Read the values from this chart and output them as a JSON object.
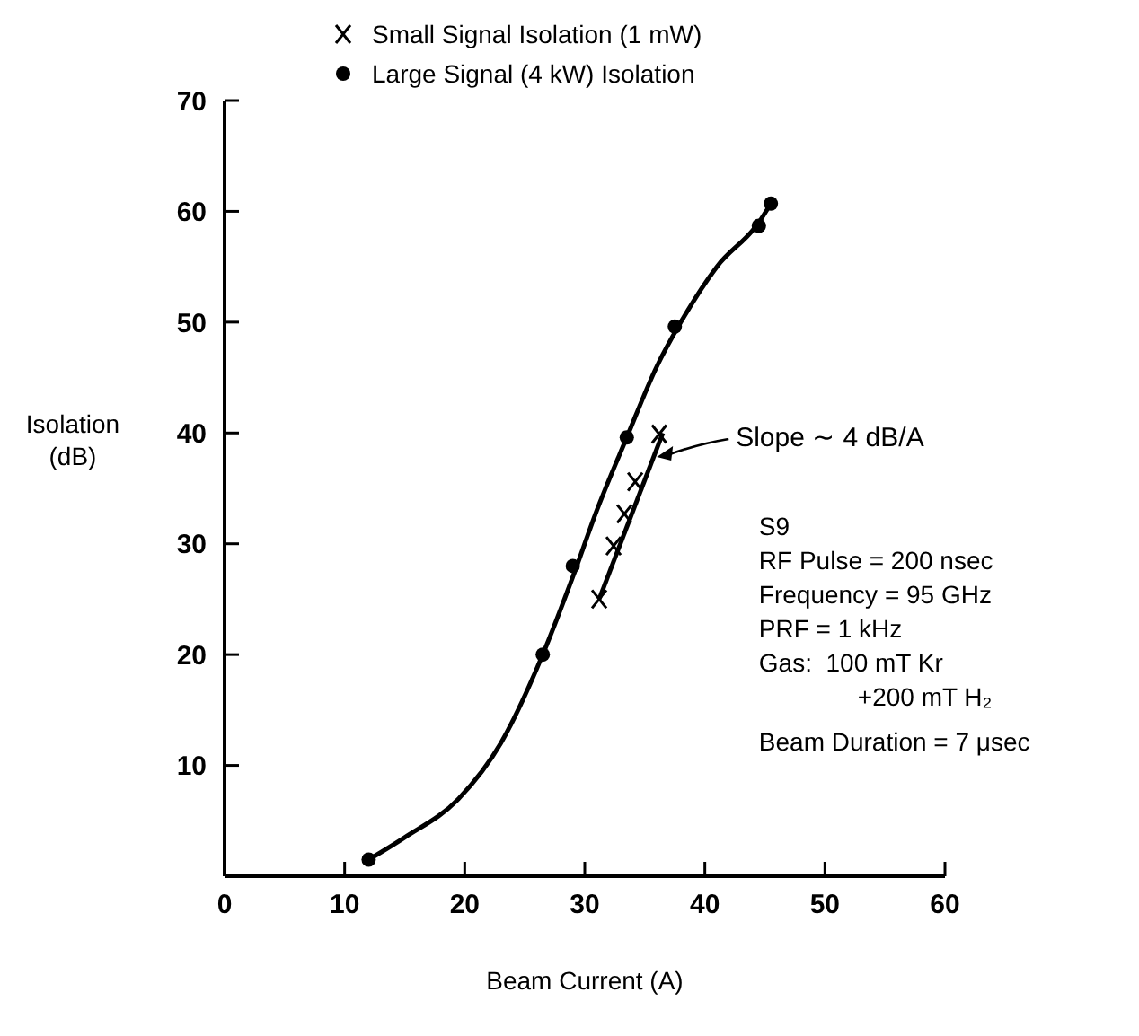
{
  "chart_data": {
    "type": "scatter",
    "xlabel": "Beam Current (A)",
    "ylabel": "Isolation\n(dB)",
    "xlim": [
      0,
      60
    ],
    "xticks": [
      0,
      10,
      20,
      30,
      40,
      50,
      60
    ],
    "ylim": [
      0,
      70
    ],
    "yticks": [
      10,
      20,
      30,
      40,
      50,
      60,
      70
    ],
    "grid": false,
    "legend": "top",
    "series": [
      {
        "name": "Small Signal Isolation (1 mW)",
        "type": "scatter",
        "marker": "cross",
        "color": "#000000",
        "x": [
          31.2,
          32.4,
          33.3,
          34.2,
          36.2
        ],
        "values": [
          25,
          29.8,
          32.7,
          35.6,
          39.9
        ]
      },
      {
        "name": "Large Signal (4 kW) Isolation",
        "type": "scatter",
        "marker": "circle",
        "color": "#000000",
        "x": [
          12,
          26.5,
          29,
          33.5,
          37.5,
          44.5,
          45.5
        ],
        "values": [
          1.5,
          20,
          28,
          39.6,
          49.6,
          58.7,
          60.7
        ]
      },
      {
        "type": "line",
        "marker": "none",
        "color": "#000000",
        "x": [
          12,
          15,
          19.5,
          23,
          26.5,
          29,
          31,
          33.5,
          36,
          38,
          41,
          44.5,
          45.5
        ],
        "values": [
          1.5,
          3.5,
          7,
          12,
          20,
          27,
          33,
          39.6,
          46,
          50,
          55,
          59,
          60.7
        ]
      },
      {
        "type": "line",
        "marker": "none",
        "color": "#000000",
        "x": [
          31.2,
          36.5
        ],
        "values": [
          25,
          40
        ]
      }
    ],
    "annotations": [
      {
        "text": "Slope ∼ 4 dB/A",
        "x": 36,
        "y": 38
      },
      "S9",
      "RF Pulse = 200 nsec",
      "Frequency = 95 GHz",
      "PRF = 1 kHz",
      "Gas:  100 mT Kr",
      "+200 mT H₂",
      "Beam Duration = 7 μsec"
    ]
  }
}
